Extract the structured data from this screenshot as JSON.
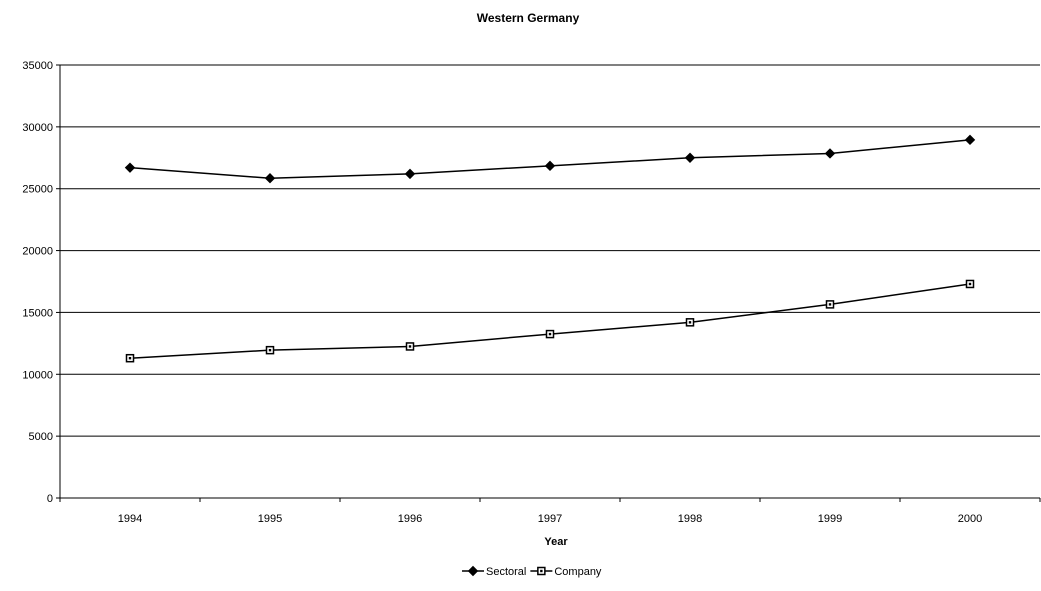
{
  "chart_data": {
    "type": "line",
    "title": "Western Germany",
    "xlabel": "Year",
    "ylabel": "",
    "ylim": [
      0,
      35000
    ],
    "yticks": [
      0,
      5000,
      10000,
      15000,
      20000,
      25000,
      30000,
      35000
    ],
    "categories": [
      "1994",
      "1995",
      "1996",
      "1997",
      "1998",
      "1999",
      "2000"
    ],
    "grid": "horizontal",
    "legend_position": "bottom",
    "series": [
      {
        "name": "Sectoral",
        "marker": "diamond",
        "color": "#000000",
        "values": [
          26700,
          25850,
          26200,
          26850,
          27500,
          27850,
          28950
        ]
      },
      {
        "name": "Company",
        "marker": "square",
        "color": "#000000",
        "values": [
          11300,
          11950,
          12250,
          13250,
          14200,
          15650,
          17300
        ]
      }
    ]
  }
}
